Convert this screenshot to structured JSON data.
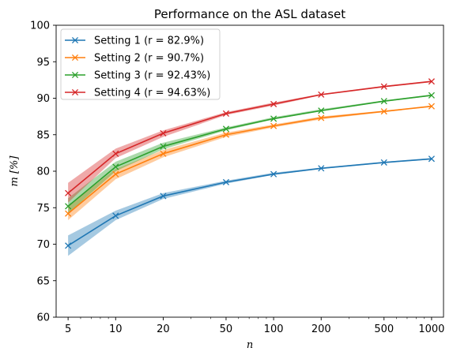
{
  "chart_data": {
    "type": "line",
    "title": "Performance on the ASL dataset",
    "xlabel": "n",
    "ylabel": "m [%]",
    "xscale": "log",
    "x": [
      5,
      10,
      20,
      50,
      100,
      200,
      500,
      1000
    ],
    "xticklabels": [
      "5",
      "10",
      "20",
      "50",
      "100",
      "200",
      "500",
      "1000"
    ],
    "ylim": [
      60,
      100
    ],
    "yticks": [
      60,
      65,
      70,
      75,
      80,
      85,
      90,
      95,
      100
    ],
    "yticklabels": [
      "60",
      "65",
      "70",
      "75",
      "80",
      "85",
      "90",
      "95",
      "100"
    ],
    "grid": false,
    "legend_position": "upper left",
    "series": [
      {
        "name": "Setting 1 (r = 82.9%)",
        "color": "#1f77b4",
        "values": [
          69.8,
          73.9,
          76.6,
          78.5,
          79.6,
          80.4,
          81.2,
          81.7
        ],
        "lower": [
          68.4,
          73.3,
          76.2,
          78.3,
          79.5,
          80.3,
          81.1,
          81.6
        ],
        "upper": [
          71.2,
          74.6,
          77.0,
          78.7,
          79.8,
          80.5,
          81.3,
          81.8
        ]
      },
      {
        "name": "Setting 2 (r = 90.7%)",
        "color": "#ff7f0e",
        "values": [
          74.2,
          79.6,
          82.4,
          85.0,
          86.2,
          87.3,
          88.2,
          88.9
        ],
        "lower": [
          73.3,
          78.9,
          81.9,
          84.7,
          86.0,
          87.1,
          88.1,
          88.8
        ],
        "upper": [
          75.3,
          80.3,
          82.9,
          85.3,
          86.4,
          87.5,
          88.3,
          89.0
        ]
      },
      {
        "name": "Setting 3 (r = 92.43%)",
        "color": "#2ca02c",
        "values": [
          75.2,
          80.6,
          83.4,
          85.8,
          87.2,
          88.3,
          89.6,
          90.4
        ],
        "lower": [
          74.2,
          80.0,
          83.0,
          85.6,
          87.1,
          88.2,
          89.5,
          90.3
        ],
        "upper": [
          76.3,
          81.3,
          83.9,
          86.0,
          87.4,
          88.5,
          89.7,
          90.5
        ]
      },
      {
        "name": "Setting 4 (r = 94.63%)",
        "color": "#d62728",
        "values": [
          77.0,
          82.4,
          85.2,
          87.9,
          89.2,
          90.5,
          91.6,
          92.3
        ],
        "lower": [
          75.7,
          81.8,
          84.7,
          87.7,
          89.0,
          90.4,
          91.5,
          92.2
        ],
        "upper": [
          78.4,
          83.1,
          85.6,
          88.1,
          89.4,
          90.6,
          91.7,
          92.4
        ]
      }
    ]
  }
}
